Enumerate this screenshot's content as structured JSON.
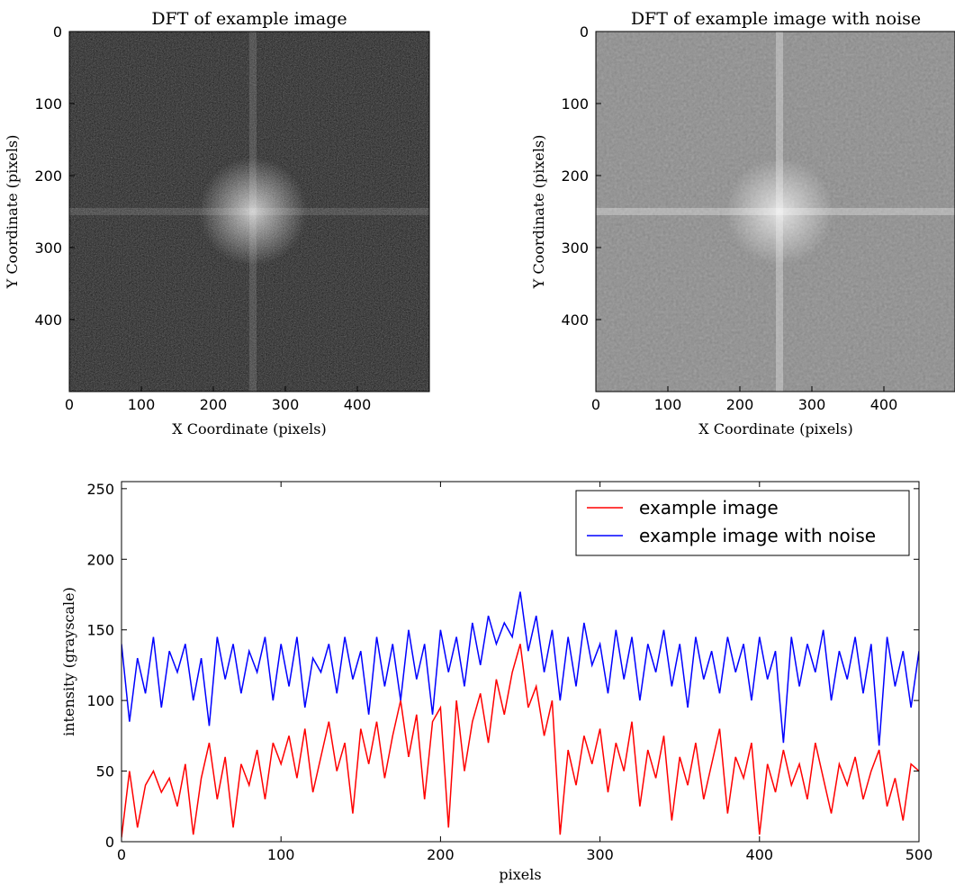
{
  "chart_data": [
    {
      "type": "image",
      "title": "DFT of example image",
      "xlabel": "X Coordinate (pixels)",
      "ylabel": "Y Coordinate (pixels)",
      "xlim": [
        0,
        500
      ],
      "ylim": [
        500,
        0
      ],
      "xticks": [
        0,
        100,
        200,
        300,
        400
      ],
      "yticks": [
        0,
        100,
        200,
        300,
        400
      ],
      "cmap": "gray"
    },
    {
      "type": "image",
      "title": "DFT of example image with noise",
      "xlabel": "X Coordinate (pixels)",
      "ylabel": "Y Coordinate (pixels)",
      "xlim": [
        0,
        500
      ],
      "ylim": [
        500,
        0
      ],
      "xticks": [
        0,
        100,
        200,
        300,
        400
      ],
      "yticks": [
        0,
        100,
        200,
        300,
        400
      ],
      "cmap": "gray"
    },
    {
      "type": "line",
      "xlabel": "pixels",
      "ylabel": "intensity (grayscale)",
      "xlim": [
        0,
        500
      ],
      "ylim": [
        0,
        255
      ],
      "xticks": [
        0,
        100,
        200,
        300,
        400,
        500
      ],
      "yticks": [
        0,
        50,
        100,
        150,
        200,
        250
      ],
      "legend": "upper right",
      "x": [
        0,
        5,
        10,
        15,
        20,
        25,
        30,
        35,
        40,
        45,
        50,
        55,
        60,
        65,
        70,
        75,
        80,
        85,
        90,
        95,
        100,
        105,
        110,
        115,
        120,
        125,
        130,
        135,
        140,
        145,
        150,
        155,
        160,
        165,
        170,
        175,
        180,
        185,
        190,
        195,
        200,
        205,
        210,
        215,
        220,
        225,
        230,
        235,
        240,
        245,
        250,
        255,
        260,
        265,
        270,
        275,
        280,
        285,
        290,
        295,
        300,
        305,
        310,
        315,
        320,
        325,
        330,
        335,
        340,
        345,
        350,
        355,
        360,
        365,
        370,
        375,
        380,
        385,
        390,
        395,
        400,
        405,
        410,
        415,
        420,
        425,
        430,
        435,
        440,
        445,
        450,
        455,
        460,
        465,
        470,
        475,
        480,
        485,
        490,
        495,
        500
      ],
      "series": [
        {
          "name": "example image",
          "color": "#ff0000",
          "values": [
            3,
            50,
            10,
            40,
            50,
            35,
            45,
            25,
            55,
            5,
            45,
            70,
            30,
            60,
            10,
            55,
            40,
            65,
            30,
            70,
            55,
            75,
            45,
            80,
            35,
            60,
            85,
            50,
            70,
            20,
            80,
            55,
            85,
            45,
            75,
            100,
            60,
            90,
            30,
            85,
            95,
            10,
            100,
            50,
            85,
            105,
            70,
            115,
            90,
            120,
            140,
            95,
            110,
            75,
            100,
            5,
            65,
            40,
            75,
            55,
            80,
            35,
            70,
            50,
            85,
            25,
            65,
            45,
            75,
            15,
            60,
            40,
            70,
            30,
            55,
            80,
            20,
            60,
            45,
            70,
            5,
            55,
            35,
            65,
            40,
            55,
            30,
            70,
            45,
            20,
            55,
            40,
            60,
            30,
            50,
            65,
            25,
            45,
            15,
            55,
            50
          ]
        },
        {
          "name": "example image with noise",
          "color": "#0000ff",
          "values": [
            140,
            85,
            130,
            105,
            145,
            95,
            135,
            120,
            140,
            100,
            130,
            82,
            145,
            115,
            140,
            105,
            135,
            120,
            145,
            100,
            140,
            110,
            145,
            95,
            130,
            120,
            140,
            105,
            145,
            115,
            135,
            90,
            145,
            110,
            140,
            100,
            150,
            115,
            140,
            90,
            150,
            120,
            145,
            110,
            155,
            125,
            160,
            140,
            155,
            145,
            177,
            135,
            160,
            120,
            150,
            100,
            145,
            110,
            155,
            125,
            140,
            105,
            150,
            115,
            145,
            100,
            140,
            120,
            150,
            110,
            140,
            95,
            145,
            115,
            135,
            105,
            145,
            120,
            140,
            100,
            145,
            115,
            135,
            70,
            145,
            110,
            140,
            120,
            150,
            100,
            135,
            115,
            145,
            105,
            140,
            68,
            145,
            110,
            135,
            95,
            135
          ]
        }
      ]
    }
  ]
}
